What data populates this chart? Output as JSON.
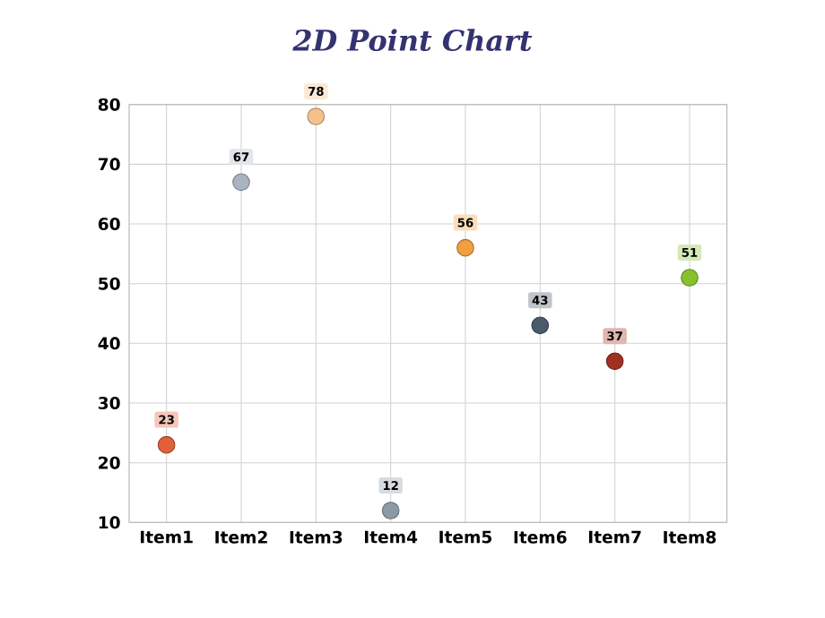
{
  "chart_data": {
    "type": "scatter",
    "title": "2D Point Chart",
    "categories": [
      "Item1",
      "Item2",
      "Item3",
      "Item4",
      "Item5",
      "Item6",
      "Item7",
      "Item8"
    ],
    "values": [
      23,
      67,
      78,
      12,
      56,
      43,
      37,
      51
    ],
    "colors": [
      "#e0603a",
      "#a8b4c0",
      "#f5c08a",
      "#8a9aa6",
      "#f0a040",
      "#4a5a6a",
      "#a03020",
      "#88c030"
    ],
    "ylim": [
      10,
      80
    ],
    "yticks": [
      10,
      20,
      30,
      40,
      50,
      60,
      70,
      80
    ],
    "grid": true,
    "data_labels": true
  }
}
